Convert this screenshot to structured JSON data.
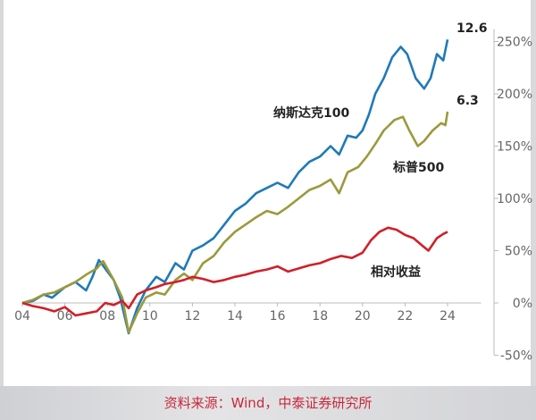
{
  "chart_data": {
    "type": "line",
    "xlabel": "",
    "ylabel": "",
    "xlim": [
      2004,
      2026
    ],
    "ylim": [
      -50,
      270
    ],
    "grid": false,
    "x_tick_labels": [
      "04",
      "06",
      "08",
      "10",
      "12",
      "14",
      "16",
      "18",
      "20",
      "22",
      "24"
    ],
    "x_tick_values": [
      2004,
      2006,
      2008,
      2010,
      2012,
      2014,
      2016,
      2018,
      2020,
      2022,
      2024
    ],
    "y_tick_labels": [
      "250%",
      "200%",
      "150%",
      "100%",
      "50%",
      "0%",
      "-50%"
    ],
    "y_tick_values": [
      250,
      200,
      150,
      100,
      50,
      0,
      -50
    ],
    "series": [
      {
        "name": "纳斯达克100",
        "color": "#1f7ab8",
        "end_label": "12.6",
        "x": [
          2004,
          2004.5,
          2005,
          2005.4,
          2006,
          2006.5,
          2007,
          2007.3,
          2007.6,
          2008,
          2008.3,
          2008.6,
          2009.0,
          2009.4,
          2009.8,
          2010.3,
          2010.7,
          2011.2,
          2011.6,
          2012,
          2012.5,
          2013,
          2013.5,
          2014,
          2014.5,
          2015,
          2015.5,
          2016,
          2016.5,
          2017,
          2017.5,
          2018,
          2018.5,
          2018.9,
          2019.3,
          2019.7,
          2020,
          2020.3,
          2020.6,
          2021,
          2021.4,
          2021.8,
          2022.1,
          2022.5,
          2022.9,
          2023.2,
          2023.5,
          2023.8,
          2024
        ],
        "y": [
          0,
          2,
          8,
          5,
          15,
          20,
          12,
          25,
          41,
          30,
          22,
          5,
          -29,
          -5,
          12,
          25,
          20,
          38,
          32,
          50,
          55,
          62,
          75,
          88,
          95,
          105,
          110,
          115,
          110,
          125,
          135,
          140,
          150,
          142,
          160,
          158,
          165,
          180,
          200,
          215,
          235,
          245,
          238,
          215,
          205,
          215,
          238,
          232,
          252
        ]
      },
      {
        "name": "标普500",
        "color": "#9b9a3c",
        "end_label": "6.3",
        "x": [
          2004,
          2004.5,
          2005,
          2005.5,
          2006,
          2006.5,
          2007,
          2007.5,
          2007.8,
          2008.3,
          2008.7,
          2009.0,
          2009.4,
          2009.8,
          2010.3,
          2010.7,
          2011.2,
          2011.6,
          2012,
          2012.5,
          2013,
          2013.5,
          2014,
          2014.5,
          2015,
          2015.5,
          2016,
          2016.5,
          2017,
          2017.5,
          2018,
          2018.5,
          2018.9,
          2019.3,
          2019.8,
          2020.2,
          2020.6,
          2021,
          2021.5,
          2021.9,
          2022.2,
          2022.6,
          2022.9,
          2023.3,
          2023.7,
          2023.9,
          2024
        ],
        "y": [
          0,
          3,
          8,
          10,
          15,
          20,
          27,
          33,
          40,
          22,
          5,
          -28,
          -10,
          5,
          10,
          8,
          22,
          28,
          22,
          38,
          45,
          58,
          68,
          75,
          82,
          88,
          85,
          92,
          100,
          108,
          112,
          118,
          105,
          125,
          130,
          140,
          152,
          165,
          175,
          178,
          165,
          150,
          155,
          165,
          172,
          170,
          183
        ]
      },
      {
        "name": "相对收益",
        "color": "#d0202a",
        "x": [
          2004,
          2004.5,
          2005,
          2005.5,
          2006,
          2006.5,
          2007,
          2007.5,
          2007.9,
          2008.3,
          2008.7,
          2009.0,
          2009.4,
          2009.8,
          2010.3,
          2010.7,
          2011.2,
          2011.6,
          2012,
          2012.5,
          2013,
          2013.5,
          2014,
          2014.5,
          2015,
          2015.5,
          2016,
          2016.5,
          2017,
          2017.5,
          2018,
          2018.5,
          2019,
          2019.5,
          2020,
          2020.4,
          2020.8,
          2021.2,
          2021.6,
          2022,
          2022.4,
          2022.8,
          2023.1,
          2023.5,
          2023.8,
          2024
        ],
        "y": [
          0,
          -3,
          -5,
          -8,
          -4,
          -12,
          -10,
          -8,
          0,
          -2,
          2,
          -5,
          8,
          12,
          15,
          18,
          20,
          22,
          25,
          23,
          20,
          22,
          25,
          27,
          30,
          32,
          35,
          30,
          33,
          36,
          38,
          42,
          45,
          43,
          48,
          60,
          68,
          72,
          70,
          65,
          62,
          55,
          50,
          62,
          66,
          68
        ]
      }
    ]
  },
  "source": "资料来源：Wind，中泰证券研究所"
}
